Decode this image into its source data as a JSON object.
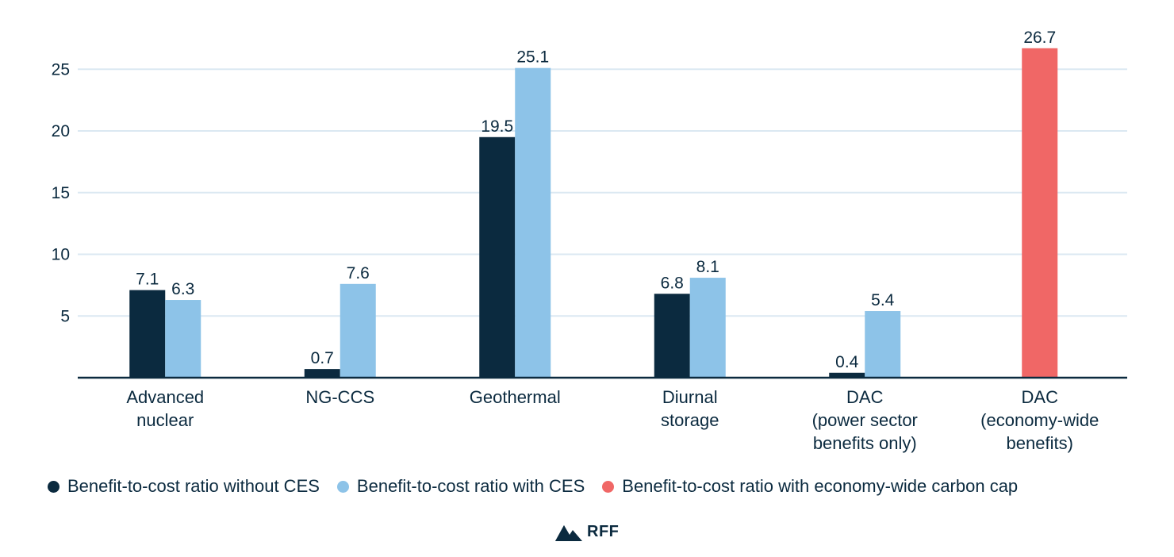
{
  "chart_data": {
    "type": "bar",
    "categories": [
      [
        "Advanced",
        "nuclear"
      ],
      [
        "NG-CCS"
      ],
      [
        "Geothermal"
      ],
      [
        "Diurnal",
        "storage"
      ],
      [
        "DAC",
        "(power sector",
        "benefits only)"
      ],
      [
        "DAC",
        "(economy-wide",
        "benefits)"
      ]
    ],
    "series": [
      {
        "name": "Benefit-to-cost ratio without CES",
        "color": "#0b2a3f",
        "values": [
          7.1,
          0.7,
          19.5,
          6.8,
          0.4,
          null
        ],
        "labels": [
          "7.1",
          "0.7",
          "19.5",
          "6.8",
          "0.4",
          null
        ]
      },
      {
        "name": "Benefit-to-cost ratio with CES",
        "color": "#8dc3e8",
        "values": [
          6.3,
          7.6,
          25.1,
          8.1,
          5.4,
          null
        ],
        "labels": [
          "6.3",
          "7.6",
          "25.1",
          "8.1",
          "5.4",
          null
        ]
      },
      {
        "name": "Benefit-to-cost ratio with economy-wide carbon cap",
        "color": "#f06766",
        "values": [
          null,
          null,
          null,
          null,
          null,
          26.7
        ],
        "labels": [
          null,
          null,
          null,
          null,
          null,
          "26.7"
        ]
      }
    ],
    "yticks": [
      5,
      10,
      15,
      20,
      25
    ],
    "ylim": [
      0,
      27
    ],
    "grid": true,
    "legend_position": "bottom"
  },
  "logo": {
    "text": "RFF"
  }
}
